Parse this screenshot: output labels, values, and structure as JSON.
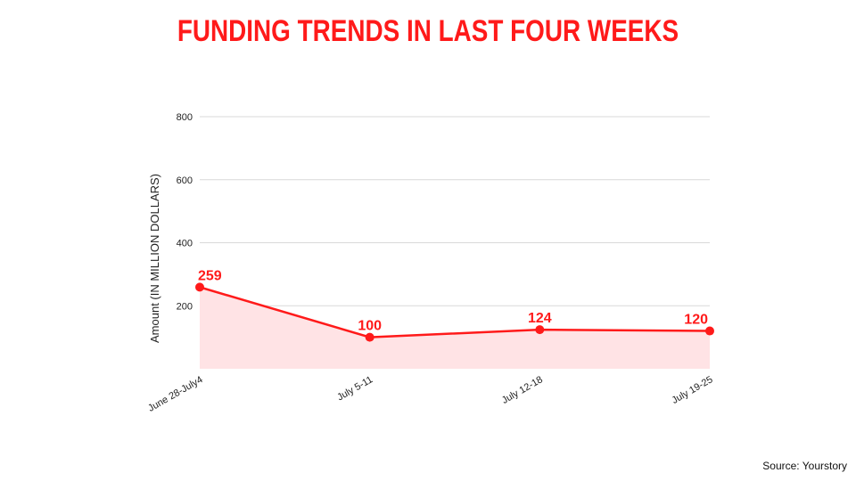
{
  "title": "FUNDING TRENDS IN LAST FOUR WEEKS",
  "source": "Source: Yourstory",
  "colors": {
    "accent": "#ff1a1a",
    "area": "#ffe3e5",
    "grid": "#d9d9d9"
  },
  "chart_data": {
    "type": "area",
    "categories": [
      "June 28-July4",
      "July 5-11",
      "July 12-18",
      "July 19-25"
    ],
    "values": [
      259,
      100,
      124,
      120
    ],
    "data_labels": [
      "259",
      "100",
      "124",
      "120"
    ],
    "ylabel": "Amount (IN MILLION DOLLARS)",
    "xlabel": "",
    "ylim": [
      0,
      800
    ],
    "yticks": [
      200,
      400,
      600,
      800
    ],
    "ytick_labels": [
      "200",
      "400",
      "600",
      "800"
    ],
    "grid": true,
    "legend": "none"
  }
}
